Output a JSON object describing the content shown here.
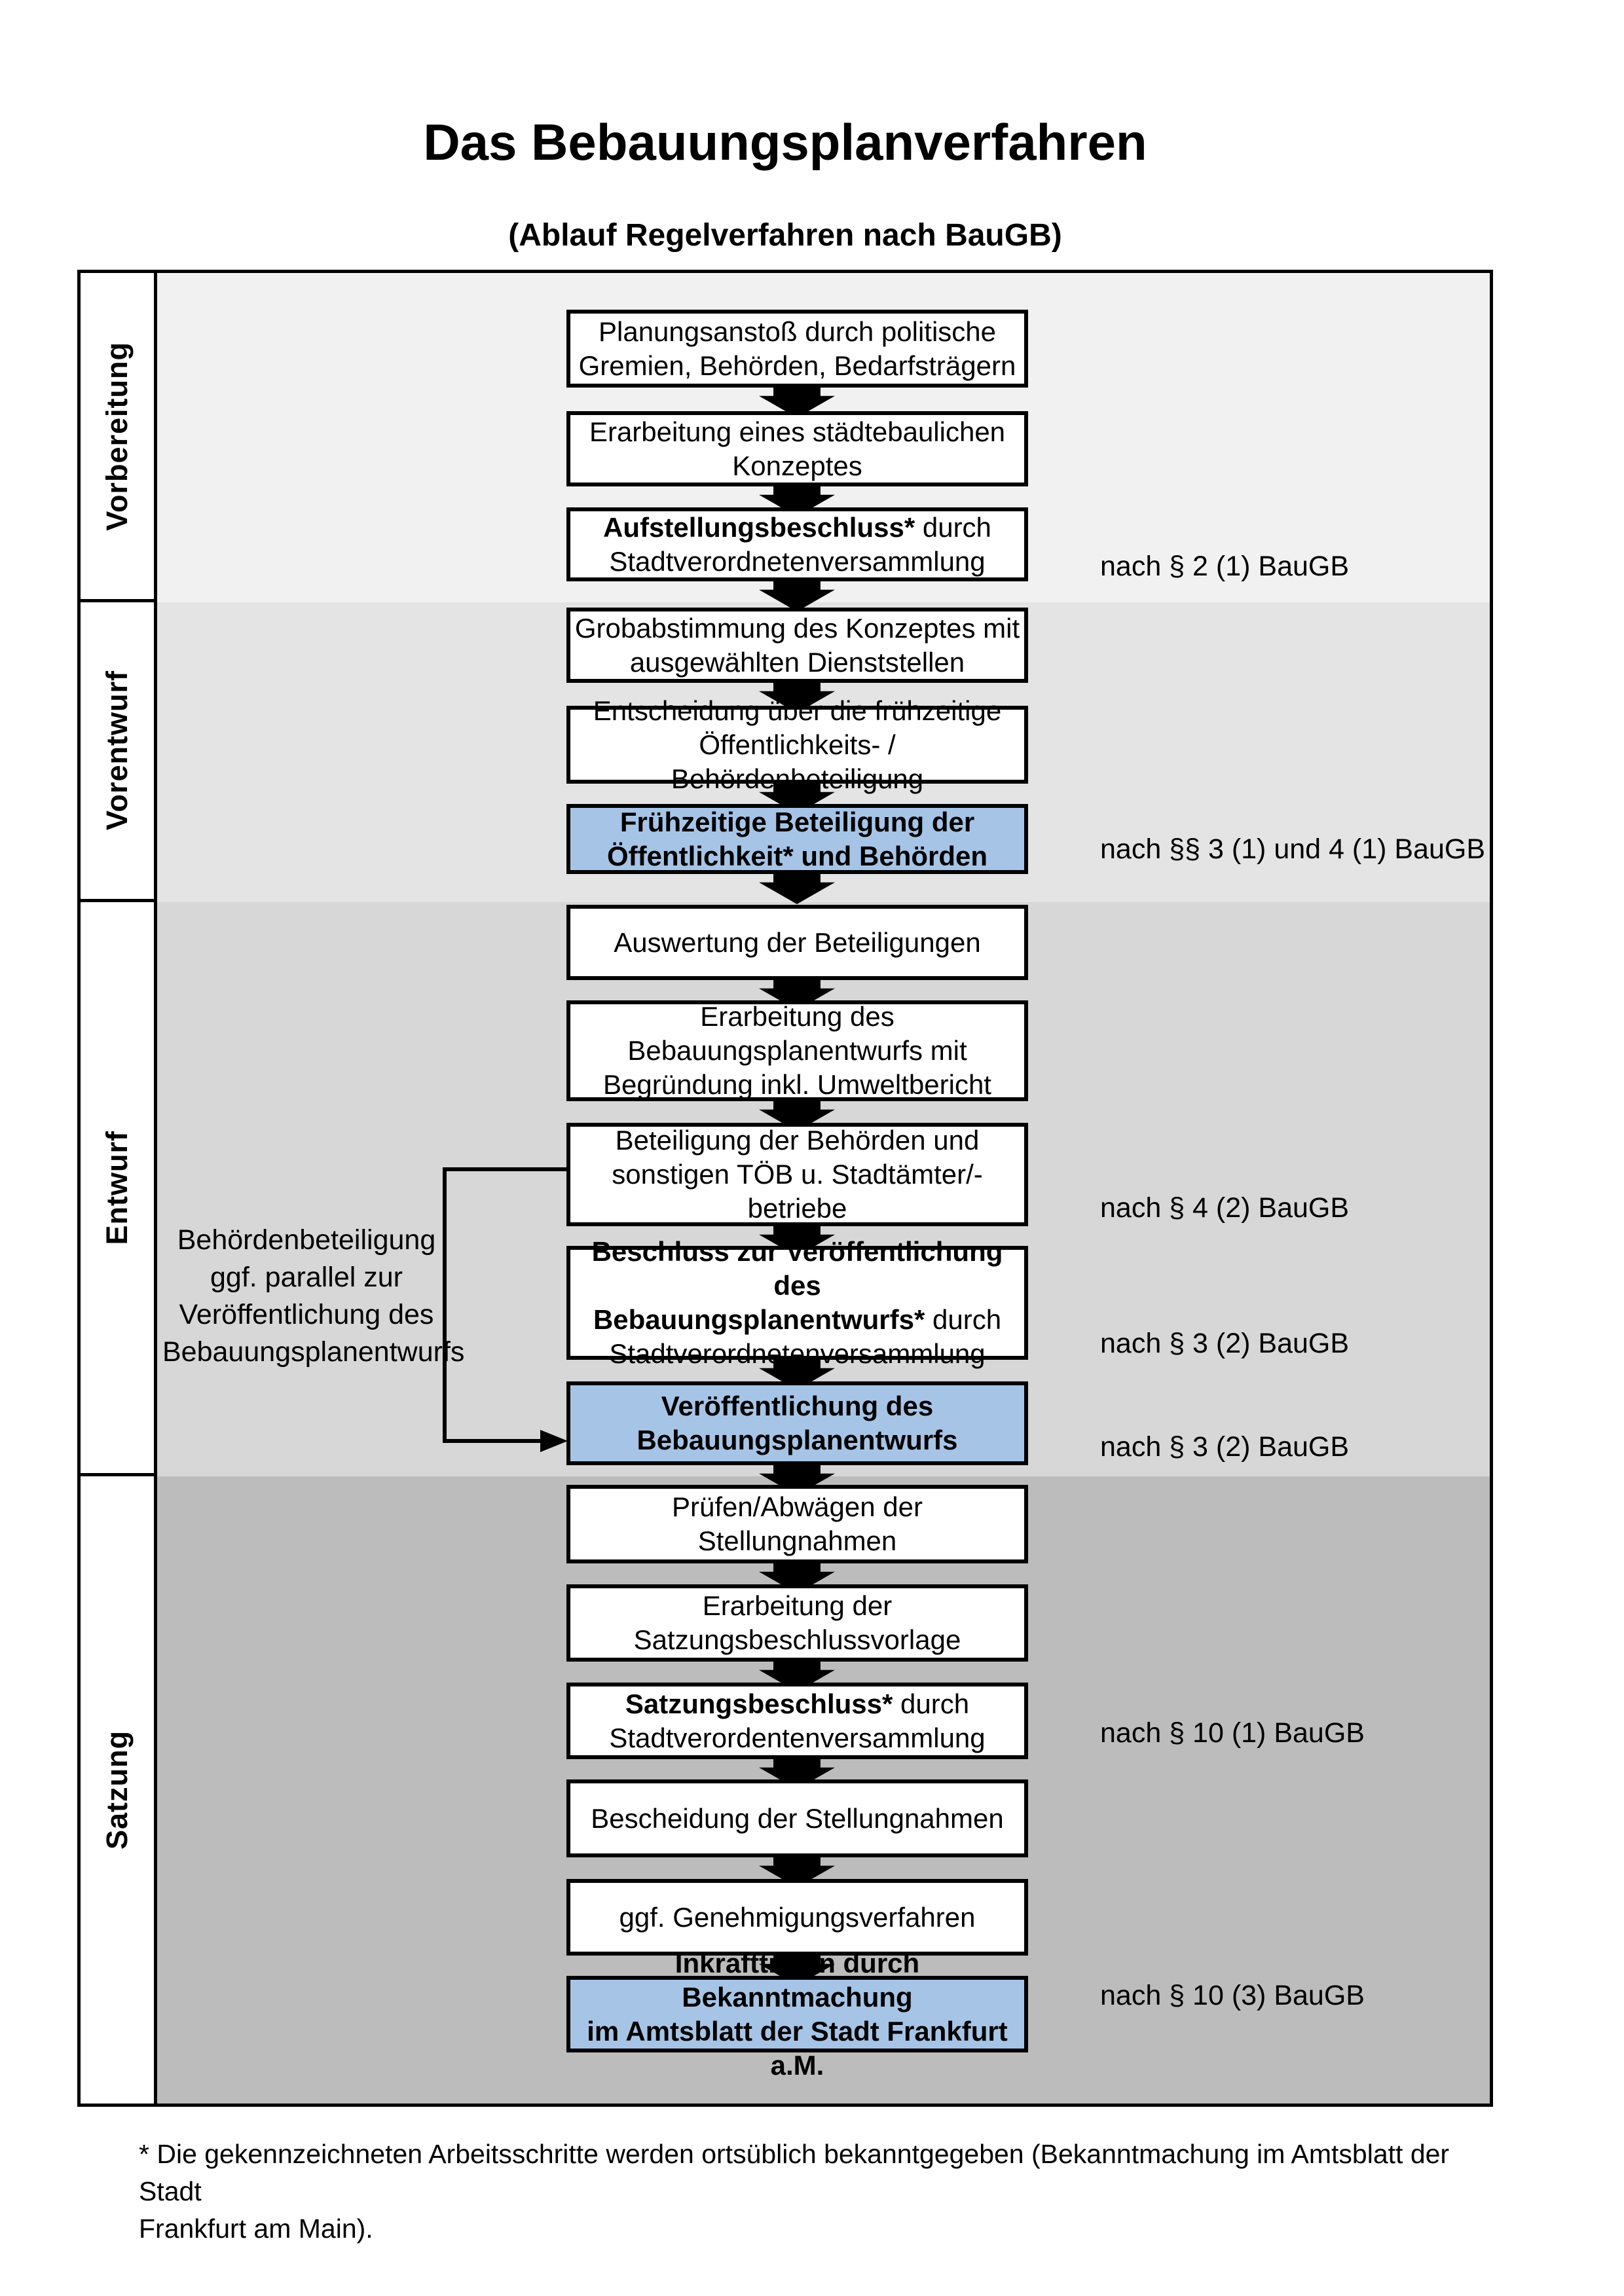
{
  "title": "Das Bebauungsplanverfahren",
  "subtitle": "(Ablauf Regelverfahren nach BauGB)",
  "colors": {
    "page_bg": "#ffffff",
    "line_black": "#000000",
    "highlight_blue": "#a6c4e6",
    "band_vorbereitung": "#f1f1f1",
    "band_vorentwurf": "#e4e4e4",
    "band_entwurf": "#d7d7d7",
    "band_satzung": "#bcbcbc"
  },
  "phases": [
    {
      "label": "Vorbereitung",
      "band_color": "#f1f1f1"
    },
    {
      "label": "Vorentwurf",
      "band_color": "#e4e4e4"
    },
    {
      "label": "Entwurf",
      "band_color": "#d7d7d7"
    },
    {
      "label": "Satzung",
      "band_color": "#bcbcbc"
    }
  ],
  "flow": {
    "boxes": [
      {
        "variant": "white",
        "lines": [
          {
            "segments": [
              {
                "text": "Planungsanstoß durch politische",
                "bold": false
              }
            ]
          },
          {
            "segments": [
              {
                "text": "Gremien, Behörden, Bedarfsträgern",
                "bold": false
              }
            ]
          }
        ]
      },
      {
        "variant": "white",
        "lines": [
          {
            "segments": [
              {
                "text": "Erarbeitung eines städtebaulichen",
                "bold": false
              }
            ]
          },
          {
            "segments": [
              {
                "text": "Konzeptes",
                "bold": false
              }
            ]
          }
        ]
      },
      {
        "variant": "white",
        "lines": [
          {
            "segments": [
              {
                "text": "Aufstellungsbeschluss*",
                "bold": true
              },
              {
                "text": " durch",
                "bold": false
              }
            ]
          },
          {
            "segments": [
              {
                "text": "Stadtverordnetenversammlung",
                "bold": false
              }
            ]
          }
        ]
      },
      {
        "variant": "white",
        "lines": [
          {
            "segments": [
              {
                "text": "Grobabstimmung des Konzeptes mit",
                "bold": false
              }
            ]
          },
          {
            "segments": [
              {
                "text": "ausgewählten Dienststellen",
                "bold": false
              }
            ]
          }
        ]
      },
      {
        "variant": "white",
        "lines": [
          {
            "segments": [
              {
                "text": "Entscheidung über die frühzeitige",
                "bold": false
              }
            ]
          },
          {
            "segments": [
              {
                "text": "Öffentlichkeits- / Behördenbeteiligung",
                "bold": false
              }
            ]
          }
        ]
      },
      {
        "variant": "blue",
        "lines": [
          {
            "segments": [
              {
                "text": "Frühzeitige Beteiligung der",
                "bold": true
              }
            ]
          },
          {
            "segments": [
              {
                "text": "Öffentlichkeit* und Behörden",
                "bold": true
              }
            ]
          }
        ]
      },
      {
        "variant": "white",
        "lines": [
          {
            "segments": [
              {
                "text": "Auswertung der Beteiligungen",
                "bold": false
              }
            ]
          }
        ]
      },
      {
        "variant": "white",
        "lines": [
          {
            "segments": [
              {
                "text": "Erarbeitung des",
                "bold": false
              }
            ]
          },
          {
            "segments": [
              {
                "text": "Bebauungsplanentwurfs mit",
                "bold": false
              }
            ]
          },
          {
            "segments": [
              {
                "text": "Begründung inkl. Umweltbericht",
                "bold": false
              }
            ]
          }
        ]
      },
      {
        "variant": "white",
        "lines": [
          {
            "segments": [
              {
                "text": "Beteiligung der Behörden und",
                "bold": false
              }
            ]
          },
          {
            "segments": [
              {
                "text": "sonstigen TÖB u. Stadtämter/-betriebe",
                "bold": false
              }
            ]
          }
        ]
      },
      {
        "variant": "white",
        "lines": [
          {
            "segments": [
              {
                "text": "Beschluss zur Veröffentlichung des",
                "bold": true
              }
            ]
          },
          {
            "segments": [
              {
                "text": "Bebauungsplanentwurfs*",
                "bold": true
              },
              {
                "text": " durch",
                "bold": false
              }
            ]
          },
          {
            "segments": [
              {
                "text": "Stadtverordnetenversammlung",
                "bold": false
              }
            ]
          }
        ]
      },
      {
        "variant": "blue",
        "lines": [
          {
            "segments": [
              {
                "text": "Veröffentlichung des",
                "bold": true
              }
            ]
          },
          {
            "segments": [
              {
                "text": "Bebauungsplanentwurfs",
                "bold": true
              }
            ]
          }
        ]
      },
      {
        "variant": "white",
        "lines": [
          {
            "segments": [
              {
                "text": "Prüfen/Abwägen der Stellungnahmen",
                "bold": false
              }
            ]
          }
        ]
      },
      {
        "variant": "white",
        "lines": [
          {
            "segments": [
              {
                "text": "Erarbeitung der",
                "bold": false
              }
            ]
          },
          {
            "segments": [
              {
                "text": "Satzungsbeschlussvorlage",
                "bold": false
              }
            ]
          }
        ]
      },
      {
        "variant": "white",
        "lines": [
          {
            "segments": [
              {
                "text": "Satzungsbeschluss*",
                "bold": true
              },
              {
                "text": " durch",
                "bold": false
              }
            ]
          },
          {
            "segments": [
              {
                "text": "Stadtverordentenversammlung",
                "bold": false
              }
            ]
          }
        ]
      },
      {
        "variant": "white",
        "lines": [
          {
            "segments": [
              {
                "text": "Bescheidung der Stellungnahmen",
                "bold": false
              }
            ]
          }
        ]
      },
      {
        "variant": "white",
        "lines": [
          {
            "segments": [
              {
                "text": "ggf. Genehmigungsverfahren",
                "bold": false
              }
            ]
          }
        ]
      },
      {
        "variant": "blue",
        "lines": [
          {
            "segments": [
              {
                "text": "Inkrafttreten",
                "bold": true
              },
              {
                "text": " durch Bekanntmachung",
                "bold": false
              }
            ]
          },
          {
            "segments": [
              {
                "text": "im Amtsblatt der Stadt Frankfurt a.M.",
                "bold": false
              }
            ]
          }
        ]
      }
    ]
  },
  "legal_notes": [
    {
      "text": "nach § 2 (1) BauGB"
    },
    {
      "text": "nach §§ 3 (1) und 4 (1) BauGB"
    },
    {
      "text": "nach § 4 (2) BauGB"
    },
    {
      "text": "nach § 3 (2) BauGB"
    },
    {
      "text": "nach § 3 (2) BauGB"
    },
    {
      "text": "nach § 10 (1) BauGB"
    },
    {
      "text": "nach § 10 (3) BauGB"
    }
  ],
  "side_note": {
    "lines": [
      "Behördenbeteiligung",
      "ggf. parallel zur",
      "Veröffentlichung des",
      "Bebauungsplanentwurfs"
    ]
  },
  "footnote": {
    "lines": [
      "* Die gekennzeichneten Arbeitsschritte werden ortsüblich bekanntgegeben (Bekanntmachung im Amtsblatt  der Stadt",
      "Frankfurt am Main)."
    ]
  }
}
